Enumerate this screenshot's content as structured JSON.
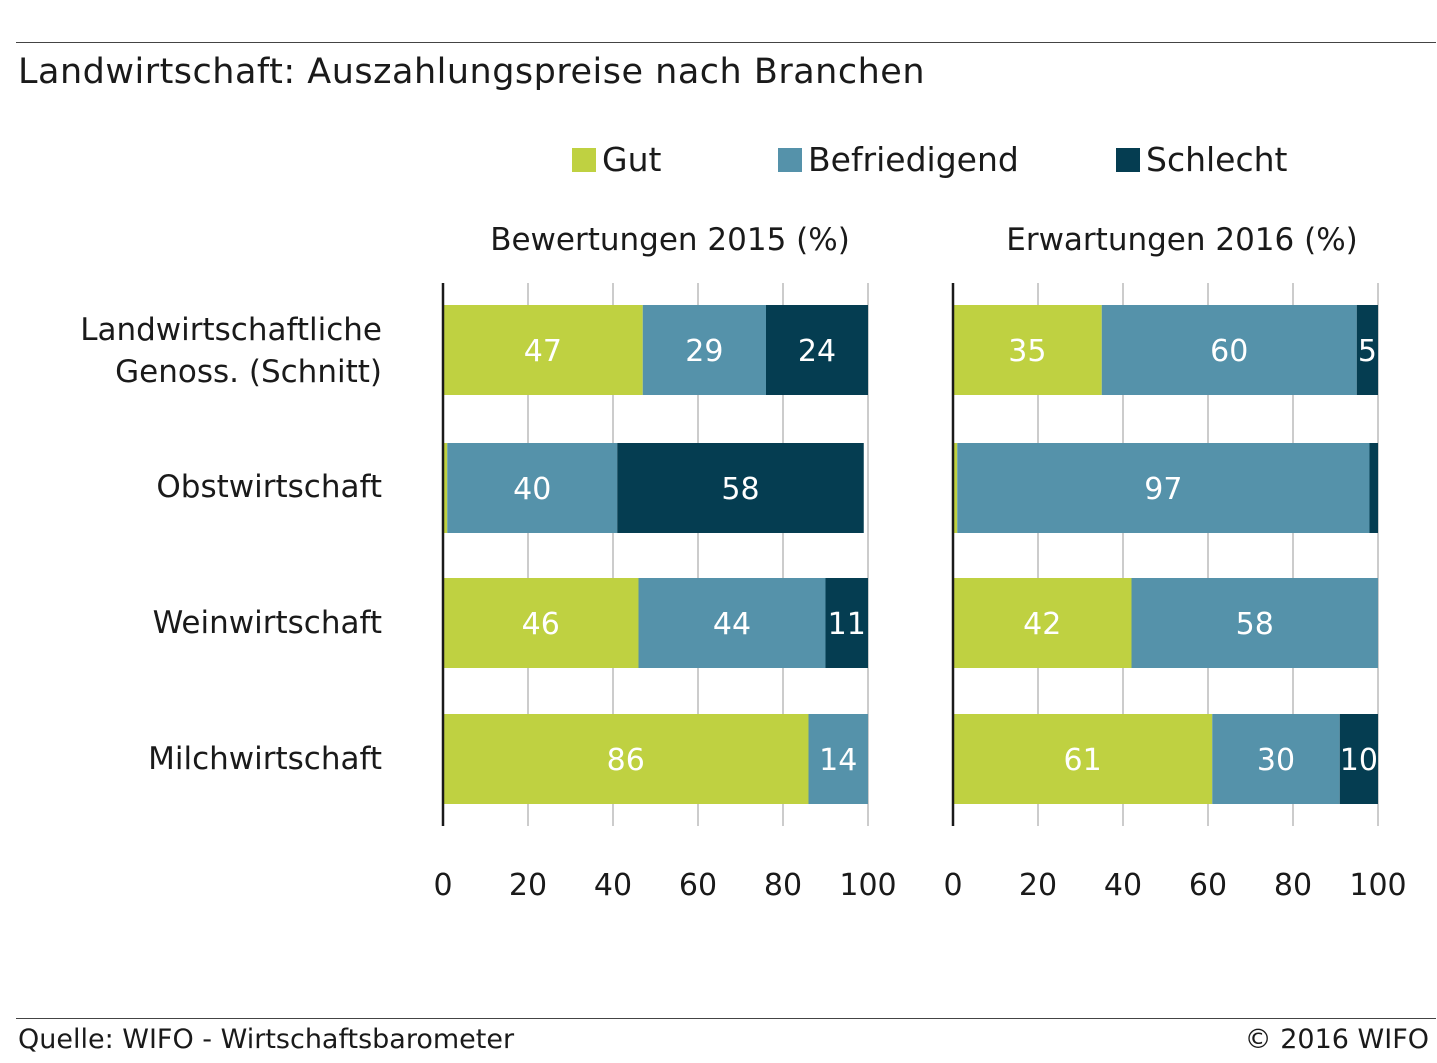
{
  "title": "Landwirtschaft: Auszahlungspreise nach Branchen",
  "legend": [
    {
      "label": "Gut",
      "color": "#bfd141"
    },
    {
      "label": "Befriedigend",
      "color": "#5592aa"
    },
    {
      "label": "Schlecht",
      "color": "#053d51"
    }
  ],
  "footer": {
    "source": "Quelle: WIFO - Wirtschaftsbarometer",
    "copyright": "© 2016 WIFO"
  },
  "chart_data": [
    {
      "type": "bar",
      "orientation": "horizontal",
      "stacked": true,
      "title": "Bewertungen 2015 (%)",
      "categories": [
        "Landwirtschaftliche\nGenoss. (Schnitt)",
        "Obstwirtschaft",
        "Weinwirtschaft",
        "Milchwirtschaft"
      ],
      "series": [
        {
          "name": "Gut",
          "values": [
            47,
            1,
            46,
            86
          ],
          "labels": [
            "47",
            "",
            "46",
            "86"
          ]
        },
        {
          "name": "Befriedigend",
          "values": [
            29,
            40,
            44,
            14
          ],
          "labels": [
            "29",
            "40",
            "44",
            "14"
          ]
        },
        {
          "name": "Schlecht",
          "values": [
            24,
            58,
            11,
            0
          ],
          "labels": [
            "24",
            "58",
            "11",
            ""
          ]
        }
      ],
      "xlim": [
        0,
        100
      ],
      "xticks": [
        "0",
        "20",
        "40",
        "60",
        "80",
        "100"
      ],
      "grid": true
    },
    {
      "type": "bar",
      "orientation": "horizontal",
      "stacked": true,
      "title": "Erwartungen 2016 (%)",
      "categories": [
        "Landwirtschaftliche\nGenoss. (Schnitt)",
        "Obstwirtschaft",
        "Weinwirtschaft",
        "Milchwirtschaft"
      ],
      "series": [
        {
          "name": "Gut",
          "values": [
            35,
            1,
            42,
            61
          ],
          "labels": [
            "35",
            "",
            "42",
            "61"
          ]
        },
        {
          "name": "Befriedigend",
          "values": [
            60,
            97,
            58,
            30
          ],
          "labels": [
            "60",
            "97",
            "58",
            "30"
          ]
        },
        {
          "name": "Schlecht",
          "values": [
            5,
            2,
            0,
            10
          ],
          "labels": [
            "5",
            "",
            "",
            "10"
          ]
        }
      ],
      "xlim": [
        0,
        100
      ],
      "xticks": [
        "0",
        "20",
        "40",
        "60",
        "80",
        "100"
      ],
      "grid": true
    }
  ]
}
